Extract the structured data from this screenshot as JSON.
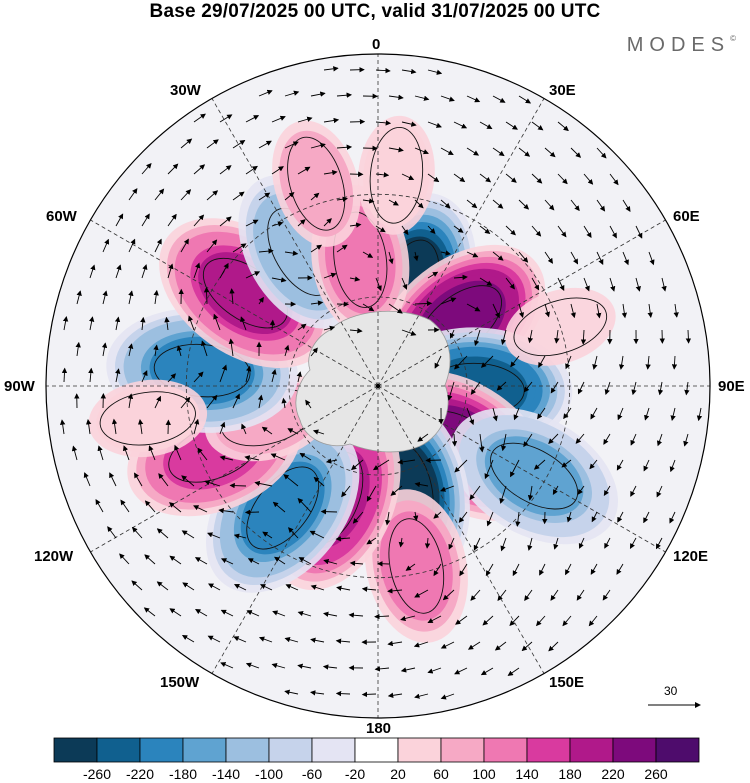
{
  "header": {
    "title": "Base 29/07/2025 00 UTC, valid 31/07/2025 00 UTC",
    "brand": "MODES",
    "brand_mark": "©"
  },
  "longitude_labels": {
    "lon_0": "0",
    "lon_30e": "30E",
    "lon_60e": "60E",
    "lon_90e": "90E",
    "lon_120e": "120E",
    "lon_150e": "150E",
    "lon_180": "180",
    "lon_150w": "150W",
    "lon_120w": "120W",
    "lon_90w": "90W",
    "lon_60w": "60W",
    "lon_30w": "30W"
  },
  "reference_vector": {
    "label": "30"
  },
  "colorbar": {
    "labels": [
      "-260",
      "-220",
      "-180",
      "-140",
      "-100",
      "-60",
      "-20",
      "20",
      "60",
      "100",
      "140",
      "180",
      "220",
      "260"
    ],
    "colors": [
      "#0c3a57",
      "#10608f",
      "#2b84bd",
      "#5fa3d1",
      "#9cbfe0",
      "#c6d3eb",
      "#e4e4f3",
      "#ffffff",
      "#fbd3db",
      "#f6a9c5",
      "#ef78b2",
      "#d93a9f",
      "#b0198a",
      "#7d0a7c",
      "#4e0c6c"
    ]
  },
  "anomaly_centers": [
    {
      "name": "a1",
      "lon": 18,
      "lat": -55,
      "value": -280
    },
    {
      "name": "a2",
      "lon": 52,
      "lat": -55,
      "value": 270
    },
    {
      "name": "a3",
      "lon": 92,
      "lat": -57,
      "value": -270
    },
    {
      "name": "a4",
      "lon": 125,
      "lat": -55,
      "value": 250
    },
    {
      "name": "a5",
      "lon": 120,
      "lat": -33,
      "value": -180
    },
    {
      "name": "a6",
      "lon": 165,
      "lat": -55,
      "value": -280
    },
    {
      "name": "a7",
      "lon": 168,
      "lat": -32,
      "value": 130
    },
    {
      "name": "a8",
      "lon": -158,
      "lat": -50,
      "value": 230
    },
    {
      "name": "a9",
      "lon": -142,
      "lat": -40,
      "value": -220
    },
    {
      "name": "a10",
      "lon": -112,
      "lat": -34,
      "value": 180
    },
    {
      "name": "a11",
      "lon": -106,
      "lat": -52,
      "value": 80
    },
    {
      "name": "a12",
      "lon": -85,
      "lat": -34,
      "value": -220
    },
    {
      "name": "a13",
      "lon": -55,
      "lat": -38,
      "value": 220
    },
    {
      "name": "a14",
      "lon": -30,
      "lat": -40,
      "value": -150
    },
    {
      "name": "a15",
      "lon": -8,
      "lat": -48,
      "value": 120
    },
    {
      "name": "a16",
      "lon": -17,
      "lat": -25,
      "value": 80
    },
    {
      "name": "a17",
      "lon": 5,
      "lat": -25,
      "value": 60
    },
    {
      "name": "a18",
      "lon": 72,
      "lat": -30,
      "value": 50
    },
    {
      "name": "a19",
      "lon": -98,
      "lat": -20,
      "value": 60
    }
  ]
}
